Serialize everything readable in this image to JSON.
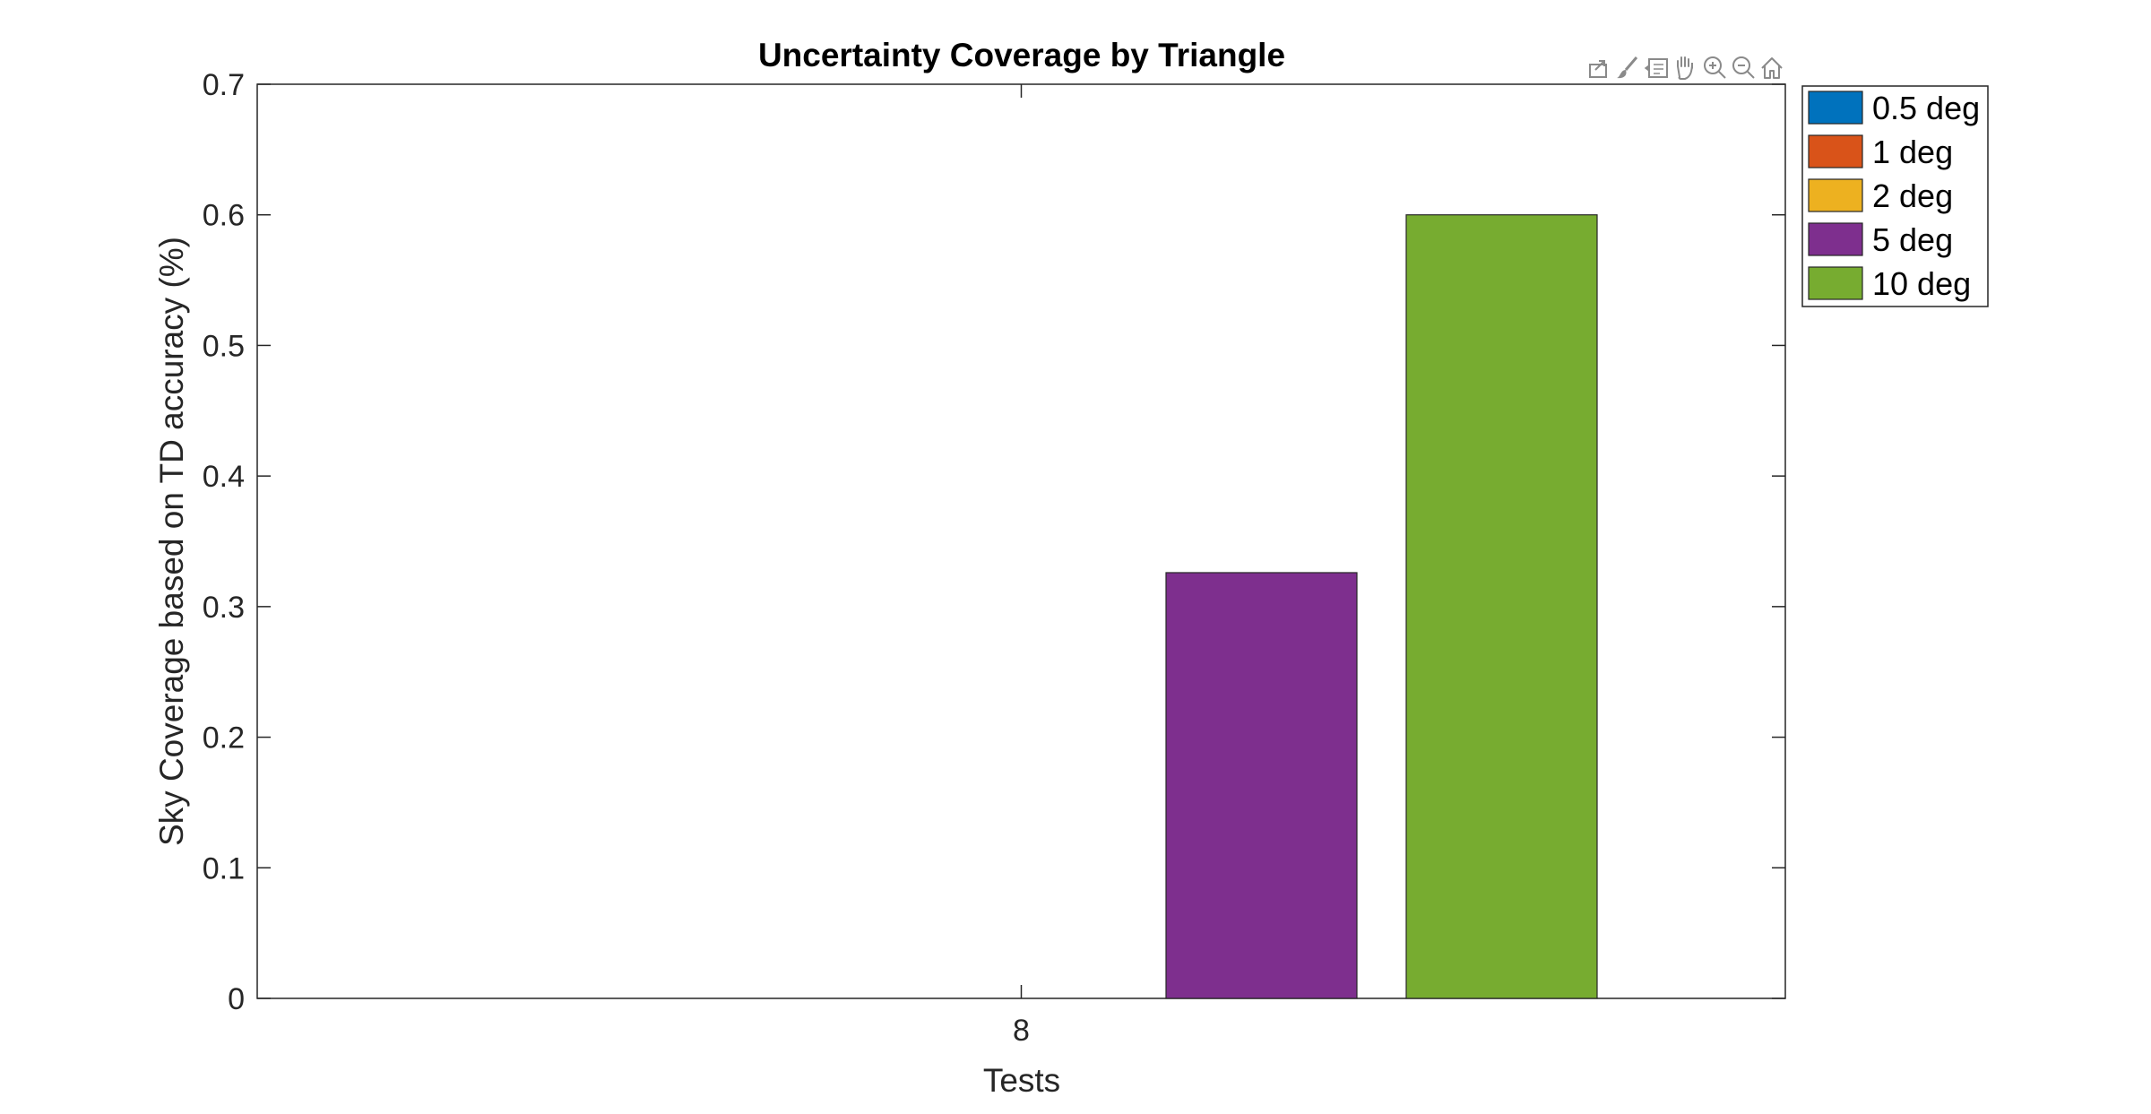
{
  "chart_data": {
    "type": "bar",
    "title": "Uncertainty Coverage by Triangle",
    "xlabel": "Tests",
    "ylabel": "Sky Coverage based on TD accuracy (%)",
    "categories": [
      "8"
    ],
    "ylim": [
      0,
      0.7
    ],
    "yticks": [
      "0",
      "0.1",
      "0.2",
      "0.3",
      "0.4",
      "0.5",
      "0.6",
      "0.7"
    ],
    "grid": false,
    "legend_position": "outside top-right",
    "series": [
      {
        "name": "0.5 deg",
        "color": "#0072BD",
        "values": [
          0
        ]
      },
      {
        "name": "1 deg",
        "color": "#D95319",
        "values": [
          0
        ]
      },
      {
        "name": "2 deg",
        "color": "#EDB120",
        "values": [
          0
        ]
      },
      {
        "name": "5 deg",
        "color": "#7E2F8E",
        "values": [
          0.326
        ]
      },
      {
        "name": "10 deg",
        "color": "#77AC30",
        "values": [
          0.6
        ]
      }
    ]
  },
  "toolbar": {
    "icons": [
      "export-icon",
      "brush-icon",
      "data-tips-icon",
      "pan-icon",
      "zoom-in-icon",
      "zoom-out-icon",
      "home-icon"
    ]
  }
}
